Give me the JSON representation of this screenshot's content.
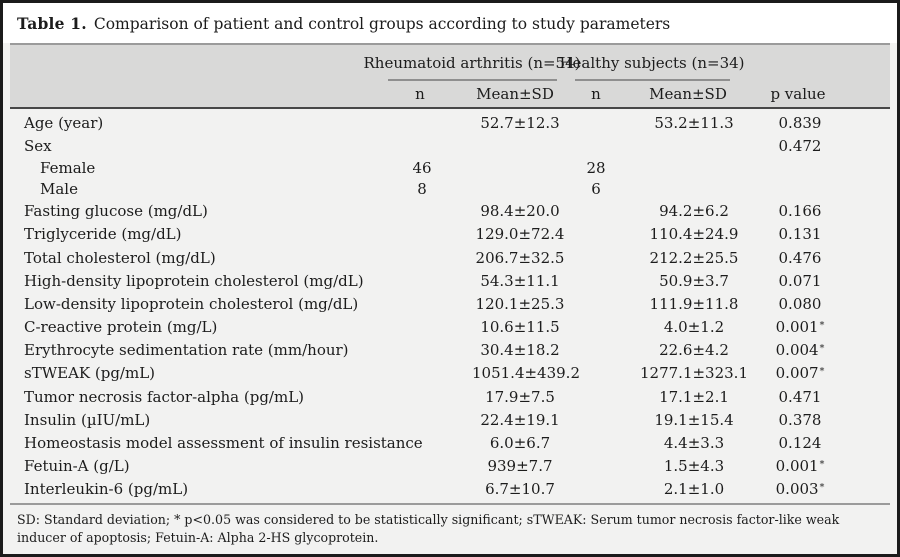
{
  "colors": {
    "outer_border": "#1b1b1b",
    "title_bg": "#ffffff",
    "header_band_bg": "#d9d9d8",
    "body_bg": "#f2f2f1",
    "rule_gray": "#9b9b9b",
    "rule_dark": "#474747",
    "text": "#1c1c1c"
  },
  "table": {
    "title_label": "Table 1.",
    "title_text": "Comparison of patient and control groups according to study parameters",
    "group_headers": [
      "Rheumatoid arthritis (n=54)",
      "Healthy subjects (n=34)"
    ],
    "column_headers": {
      "n_ra": "n",
      "mean_ra": "Mean±SD",
      "n_hs": "n",
      "mean_hs": "Mean±SD",
      "p": "p value"
    },
    "rows": [
      {
        "label": "Age (year)",
        "n1": "",
        "mean1": "52.7±12.3",
        "n2": "",
        "mean2": "53.2±11.3",
        "p": "0.839",
        "star": ""
      },
      {
        "label": "Sex",
        "n1": "",
        "mean1": "",
        "n2": "",
        "mean2": "",
        "p": "0.472",
        "star": ""
      },
      {
        "label": "Female",
        "indent": true,
        "sub": true,
        "n1": "46",
        "mean1": "",
        "n2": "28",
        "mean2": "",
        "p": "",
        "star": ""
      },
      {
        "label": "Male",
        "indent": true,
        "sub": true,
        "n1": "8",
        "mean1": "",
        "n2": "6",
        "mean2": "",
        "p": "",
        "star": ""
      },
      {
        "label": "Fasting glucose (mg/dL)",
        "n1": "",
        "mean1": "98.4±20.0",
        "n2": "",
        "mean2": "94.2±6.2",
        "p": "0.166",
        "star": ""
      },
      {
        "label": "Triglyceride (mg/dL)",
        "n1": "",
        "mean1": "129.0±72.4",
        "n2": "",
        "mean2": "110.4±24.9",
        "p": "0.131",
        "star": ""
      },
      {
        "label": "Total cholesterol (mg/dL)",
        "n1": "",
        "mean1": "206.7±32.5",
        "n2": "",
        "mean2": "212.2±25.5",
        "p": "0.476",
        "star": ""
      },
      {
        "label": "High-density lipoprotein cholesterol (mg/dL)",
        "n1": "",
        "mean1": "54.3±11.1",
        "n2": "",
        "mean2": "50.9±3.7",
        "p": "0.071",
        "star": ""
      },
      {
        "label": "Low-density lipoprotein cholesterol (mg/dL)",
        "n1": "",
        "mean1": "120.1±25.3",
        "n2": "",
        "mean2": "111.9±11.8",
        "p": "0.080",
        "star": ""
      },
      {
        "label": "C-reactive protein (mg/L)",
        "n1": "",
        "mean1": "10.6±11.5",
        "n2": "",
        "mean2": "4.0±1.2",
        "p": "0.001",
        "star": "*"
      },
      {
        "label": "Erythrocyte sedimentation rate (mm/hour)",
        "n1": "",
        "mean1": "30.4±18.2",
        "n2": "",
        "mean2": "22.6±4.2",
        "p": "0.004",
        "star": "*"
      },
      {
        "label": "sTWEAK (pg/mL)",
        "n1": "",
        "mean1": "1051.4±439.2",
        "n2": "",
        "mean2": "1277.1±323.1",
        "p": "0.007",
        "star": "*"
      },
      {
        "label": "Tumor necrosis factor-alpha (pg/mL)",
        "n1": "",
        "mean1": "17.9±7.5",
        "n2": "",
        "mean2": "17.1±2.1",
        "p": "0.471",
        "star": ""
      },
      {
        "label": "Insulin (µIU/mL)",
        "n1": "",
        "mean1": "22.4±19.1",
        "n2": "",
        "mean2": "19.1±15.4",
        "p": "0.378",
        "star": ""
      },
      {
        "label": "Homeostasis model assessment of insulin resistance",
        "n1": "",
        "mean1": "6.0±6.7",
        "n2": "",
        "mean2": "4.4±3.3",
        "p": "0.124",
        "star": ""
      },
      {
        "label": "Fetuin-A (g/L)",
        "n1": "",
        "mean1": "939±7.7",
        "n2": "",
        "mean2": "1.5±4.3",
        "p": "0.001",
        "star": "*"
      },
      {
        "label": "Interleukin-6 (pg/mL)",
        "n1": "",
        "mean1": "6.7±10.7",
        "n2": "",
        "mean2": "2.1±1.0",
        "p": "0.003",
        "star": "*"
      }
    ],
    "footnote": "SD: Standard deviation; * p<0.05 was considered to be statistically significant; sTWEAK: Serum tumor necrosis factor-like weak inducer of apoptosis; Fetuin-A: Alpha 2-HS glycoprotein."
  }
}
